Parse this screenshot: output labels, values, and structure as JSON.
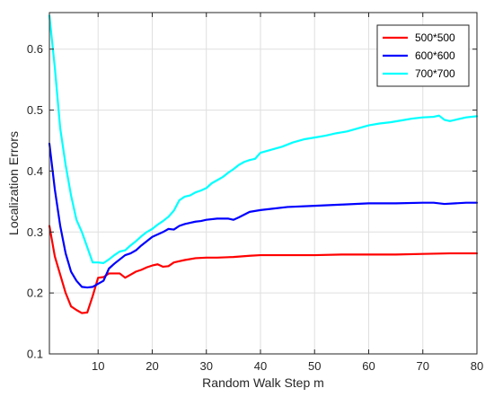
{
  "chart_data": {
    "type": "line",
    "title": "",
    "xlabel": "Random Walk Step m",
    "ylabel": "Localization Errors",
    "xlim": [
      1,
      80
    ],
    "ylim": [
      0.1,
      0.66
    ],
    "xticks": [
      10,
      20,
      30,
      40,
      50,
      60,
      70,
      80
    ],
    "yticks": [
      0.1,
      0.2,
      0.3,
      0.4,
      0.5,
      0.6
    ],
    "xtick_labels": [
      "10",
      "20",
      "30",
      "40",
      "50",
      "60",
      "70",
      "80"
    ],
    "ytick_labels": [
      "0.1",
      "0.2",
      "0.3",
      "0.4",
      "0.5",
      "0.6"
    ],
    "grid": true,
    "legend_position": "top-right",
    "series": [
      {
        "name": "500*500",
        "color": "#ff0000",
        "points": [
          [
            1,
            0.31
          ],
          [
            2,
            0.26
          ],
          [
            3,
            0.23
          ],
          [
            4,
            0.2
          ],
          [
            5,
            0.178
          ],
          [
            6,
            0.172
          ],
          [
            7,
            0.167
          ],
          [
            8,
            0.168
          ],
          [
            9,
            0.195
          ],
          [
            10,
            0.225
          ],
          [
            11,
            0.226
          ],
          [
            12,
            0.232
          ],
          [
            13,
            0.232
          ],
          [
            14,
            0.232
          ],
          [
            15,
            0.225
          ],
          [
            16,
            0.23
          ],
          [
            17,
            0.235
          ],
          [
            18,
            0.238
          ],
          [
            19,
            0.242
          ],
          [
            20,
            0.245
          ],
          [
            21,
            0.247
          ],
          [
            22,
            0.243
          ],
          [
            23,
            0.244
          ],
          [
            24,
            0.25
          ],
          [
            25,
            0.252
          ],
          [
            26,
            0.254
          ],
          [
            28,
            0.257
          ],
          [
            30,
            0.258
          ],
          [
            32,
            0.258
          ],
          [
            35,
            0.259
          ],
          [
            38,
            0.261
          ],
          [
            40,
            0.262
          ],
          [
            45,
            0.262
          ],
          [
            50,
            0.262
          ],
          [
            55,
            0.263
          ],
          [
            60,
            0.263
          ],
          [
            65,
            0.263
          ],
          [
            70,
            0.264
          ],
          [
            75,
            0.265
          ],
          [
            80,
            0.265
          ]
        ]
      },
      {
        "name": "600*600",
        "color": "#0000ff",
        "points": [
          [
            1,
            0.445
          ],
          [
            2,
            0.37
          ],
          [
            3,
            0.31
          ],
          [
            4,
            0.265
          ],
          [
            5,
            0.235
          ],
          [
            6,
            0.22
          ],
          [
            7,
            0.21
          ],
          [
            8,
            0.209
          ],
          [
            9,
            0.21
          ],
          [
            10,
            0.215
          ],
          [
            11,
            0.22
          ],
          [
            12,
            0.24
          ],
          [
            13,
            0.248
          ],
          [
            14,
            0.255
          ],
          [
            15,
            0.262
          ],
          [
            16,
            0.265
          ],
          [
            17,
            0.27
          ],
          [
            18,
            0.278
          ],
          [
            19,
            0.285
          ],
          [
            20,
            0.292
          ],
          [
            21,
            0.296
          ],
          [
            22,
            0.3
          ],
          [
            23,
            0.305
          ],
          [
            24,
            0.304
          ],
          [
            25,
            0.31
          ],
          [
            26,
            0.313
          ],
          [
            27,
            0.315
          ],
          [
            28,
            0.317
          ],
          [
            29,
            0.318
          ],
          [
            30,
            0.32
          ],
          [
            32,
            0.322
          ],
          [
            34,
            0.322
          ],
          [
            35,
            0.32
          ],
          [
            36,
            0.324
          ],
          [
            38,
            0.333
          ],
          [
            40,
            0.336
          ],
          [
            42,
            0.338
          ],
          [
            45,
            0.341
          ],
          [
            50,
            0.343
          ],
          [
            55,
            0.345
          ],
          [
            60,
            0.347
          ],
          [
            65,
            0.347
          ],
          [
            70,
            0.348
          ],
          [
            72,
            0.348
          ],
          [
            74,
            0.346
          ],
          [
            76,
            0.347
          ],
          [
            78,
            0.348
          ],
          [
            80,
            0.348
          ]
        ]
      },
      {
        "name": "700*700",
        "color": "#00ffff",
        "points": [
          [
            1,
            0.655
          ],
          [
            2,
            0.57
          ],
          [
            3,
            0.47
          ],
          [
            4,
            0.41
          ],
          [
            5,
            0.36
          ],
          [
            6,
            0.32
          ],
          [
            7,
            0.3
          ],
          [
            8,
            0.275
          ],
          [
            9,
            0.25
          ],
          [
            10,
            0.25
          ],
          [
            11,
            0.249
          ],
          [
            12,
            0.255
          ],
          [
            13,
            0.262
          ],
          [
            14,
            0.268
          ],
          [
            15,
            0.27
          ],
          [
            16,
            0.278
          ],
          [
            17,
            0.285
          ],
          [
            18,
            0.293
          ],
          [
            19,
            0.3
          ],
          [
            20,
            0.305
          ],
          [
            21,
            0.312
          ],
          [
            22,
            0.318
          ],
          [
            23,
            0.325
          ],
          [
            24,
            0.335
          ],
          [
            25,
            0.352
          ],
          [
            26,
            0.358
          ],
          [
            27,
            0.36
          ],
          [
            28,
            0.365
          ],
          [
            29,
            0.368
          ],
          [
            30,
            0.372
          ],
          [
            31,
            0.38
          ],
          [
            32,
            0.385
          ],
          [
            33,
            0.39
          ],
          [
            34,
            0.397
          ],
          [
            35,
            0.403
          ],
          [
            36,
            0.41
          ],
          [
            37,
            0.415
          ],
          [
            38,
            0.418
          ],
          [
            39,
            0.42
          ],
          [
            40,
            0.43
          ],
          [
            42,
            0.435
          ],
          [
            44,
            0.44
          ],
          [
            46,
            0.447
          ],
          [
            48,
            0.452
          ],
          [
            50,
            0.455
          ],
          [
            52,
            0.458
          ],
          [
            54,
            0.462
          ],
          [
            56,
            0.465
          ],
          [
            58,
            0.47
          ],
          [
            60,
            0.475
          ],
          [
            62,
            0.478
          ],
          [
            64,
            0.48
          ],
          [
            66,
            0.483
          ],
          [
            68,
            0.486
          ],
          [
            70,
            0.488
          ],
          [
            72,
            0.489
          ],
          [
            73,
            0.491
          ],
          [
            74,
            0.484
          ],
          [
            75,
            0.482
          ],
          [
            76,
            0.484
          ],
          [
            78,
            0.488
          ],
          [
            80,
            0.49
          ]
        ]
      }
    ]
  }
}
